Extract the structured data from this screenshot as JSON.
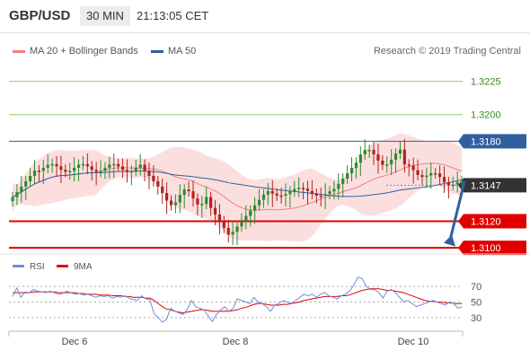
{
  "header": {
    "symbol": "GBP/USD",
    "timeframe": "30 MIN",
    "time": "21:13:05 CET"
  },
  "legend": {
    "ma20": {
      "label": "MA 20 + Bollinger Bands",
      "color": "#f08080"
    },
    "ma50": {
      "label": "MA 50",
      "color": "#2f5f9e"
    }
  },
  "credit": "Research © 2019 Trading Central",
  "levels": [
    {
      "value": 1.3225,
      "label": "1.3225",
      "kind": "target"
    },
    {
      "value": 1.32,
      "label": "1.3200",
      "kind": "target"
    },
    {
      "value": 1.318,
      "label": "1.3180",
      "kind": "pivot"
    },
    {
      "value": 1.3147,
      "label": "1.3147",
      "kind": "last"
    },
    {
      "value": 1.312,
      "label": "1.3120",
      "kind": "support"
    },
    {
      "value": 1.31,
      "label": "1.3100",
      "kind": "support"
    }
  ],
  "colors": {
    "target": "#9acd6a",
    "pivot": "#2f5f9e",
    "support": "#e00000",
    "last": "#333333",
    "candle_up": "#2e8b2e",
    "candle_down": "#b22222",
    "band": "#f7c4c4",
    "rsi": "#6f8fd8",
    "rsi_ma": "#e00000",
    "arrow": "#2f5f9e"
  },
  "chart_data": {
    "type": "candlestick",
    "price_range": [
      1.30974,
      1.32416
    ],
    "x_labels": [
      "Dec 6",
      "Dec 8",
      "Dec 10"
    ],
    "rsi": {
      "label": "RSI",
      "ma_label": "9MA",
      "ticks": [
        "70",
        "50",
        "30"
      ],
      "range": [
        16,
        84
      ],
      "values": [
        57,
        68,
        56,
        63,
        62,
        66,
        64,
        63,
        62,
        64,
        62,
        60,
        61,
        64,
        62,
        60,
        61,
        59,
        60,
        58,
        56,
        58,
        57,
        58,
        55,
        57,
        56,
        58,
        55,
        53,
        52,
        58,
        54,
        53,
        35,
        30,
        24,
        28,
        42,
        38,
        36,
        34,
        41,
        52,
        44,
        42,
        40,
        32,
        25,
        34,
        40,
        44,
        38,
        42,
        54,
        52,
        50,
        48,
        56,
        50,
        48,
        44,
        38,
        46,
        48,
        52,
        50,
        48,
        52,
        56,
        60,
        58,
        60,
        56,
        60,
        62,
        58,
        56,
        54,
        58,
        60,
        64,
        72,
        82,
        80,
        70,
        66,
        66,
        62,
        55,
        64,
        66,
        62,
        56,
        50,
        52,
        48,
        44,
        46,
        48,
        50,
        52,
        50,
        48,
        46,
        50,
        48,
        42,
        44
      ],
      "ma": [
        62,
        62,
        62,
        62,
        62,
        63,
        63,
        63,
        63,
        63,
        63,
        62,
        62,
        62,
        62,
        62,
        61,
        61,
        60,
        60,
        60,
        59,
        59,
        59,
        58,
        58,
        58,
        57,
        57,
        56,
        56,
        56,
        55,
        55,
        52,
        48,
        44,
        41,
        40,
        38,
        37,
        36,
        37,
        38,
        39,
        40,
        40,
        39,
        38,
        38,
        38,
        38,
        38,
        39,
        40,
        42,
        43,
        45,
        47,
        48,
        48,
        47,
        46,
        46,
        46,
        47,
        47,
        48,
        49,
        50,
        52,
        53,
        54,
        55,
        56,
        57,
        57,
        57,
        57,
        58,
        58,
        59,
        61,
        63,
        65,
        66,
        67,
        67,
        67,
        66,
        65,
        65,
        64,
        63,
        62,
        60,
        58,
        56,
        54,
        52,
        51,
        51,
        50,
        50,
        49,
        49,
        48,
        48,
        48
      ]
    }
  }
}
